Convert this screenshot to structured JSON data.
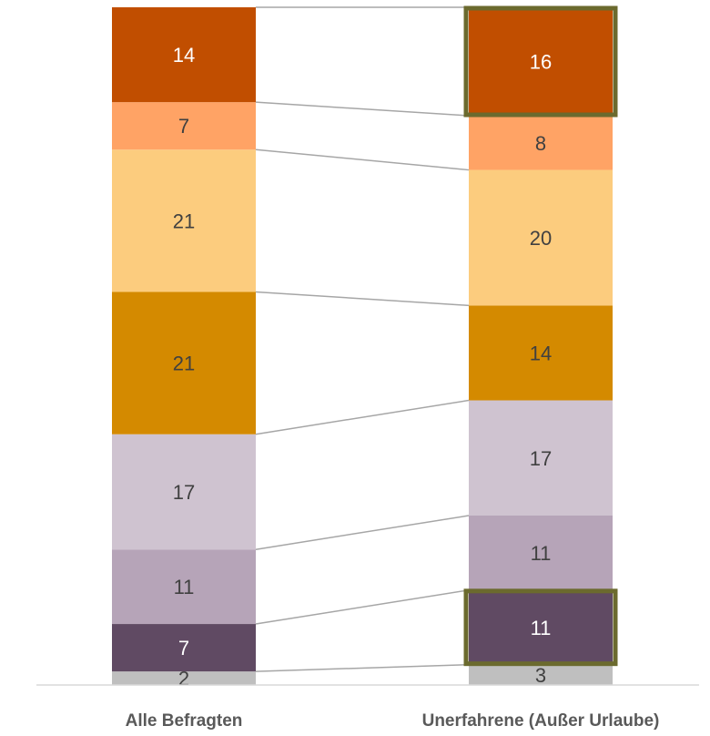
{
  "chart_data": {
    "type": "bar",
    "stacked": true,
    "normalized": true,
    "categories": [
      "Alle Befragten",
      "Unerfahrene (Außer Urlaube)"
    ],
    "series": [
      {
        "values": [
          2,
          3
        ],
        "color": "#bfbfbf",
        "label_color": "#404040"
      },
      {
        "values": [
          7,
          11
        ],
        "color": "#604a63",
        "label_color": "#ffffff"
      },
      {
        "values": [
          11,
          11
        ],
        "color": "#b6a4b8",
        "label_color": "#404040"
      },
      {
        "values": [
          17,
          17
        ],
        "color": "#cfc3d0",
        "label_color": "#404040"
      },
      {
        "values": [
          21,
          14
        ],
        "color": "#d48a00",
        "label_color": "#404040"
      },
      {
        "values": [
          21,
          20
        ],
        "color": "#fccc7e",
        "label_color": "#404040"
      },
      {
        "values": [
          7,
          8
        ],
        "color": "#ffa365",
        "label_color": "#404040"
      },
      {
        "values": [
          14,
          16
        ],
        "color": "#c14e00",
        "label_color": "#ffffff"
      }
    ],
    "highlights": [
      {
        "category": 1,
        "series": 1,
        "color": "#6b6a2e"
      },
      {
        "category": 1,
        "series": 7,
        "color": "#6b6a2e"
      }
    ],
    "connector_lines": true,
    "grid": false,
    "legend": "none"
  }
}
